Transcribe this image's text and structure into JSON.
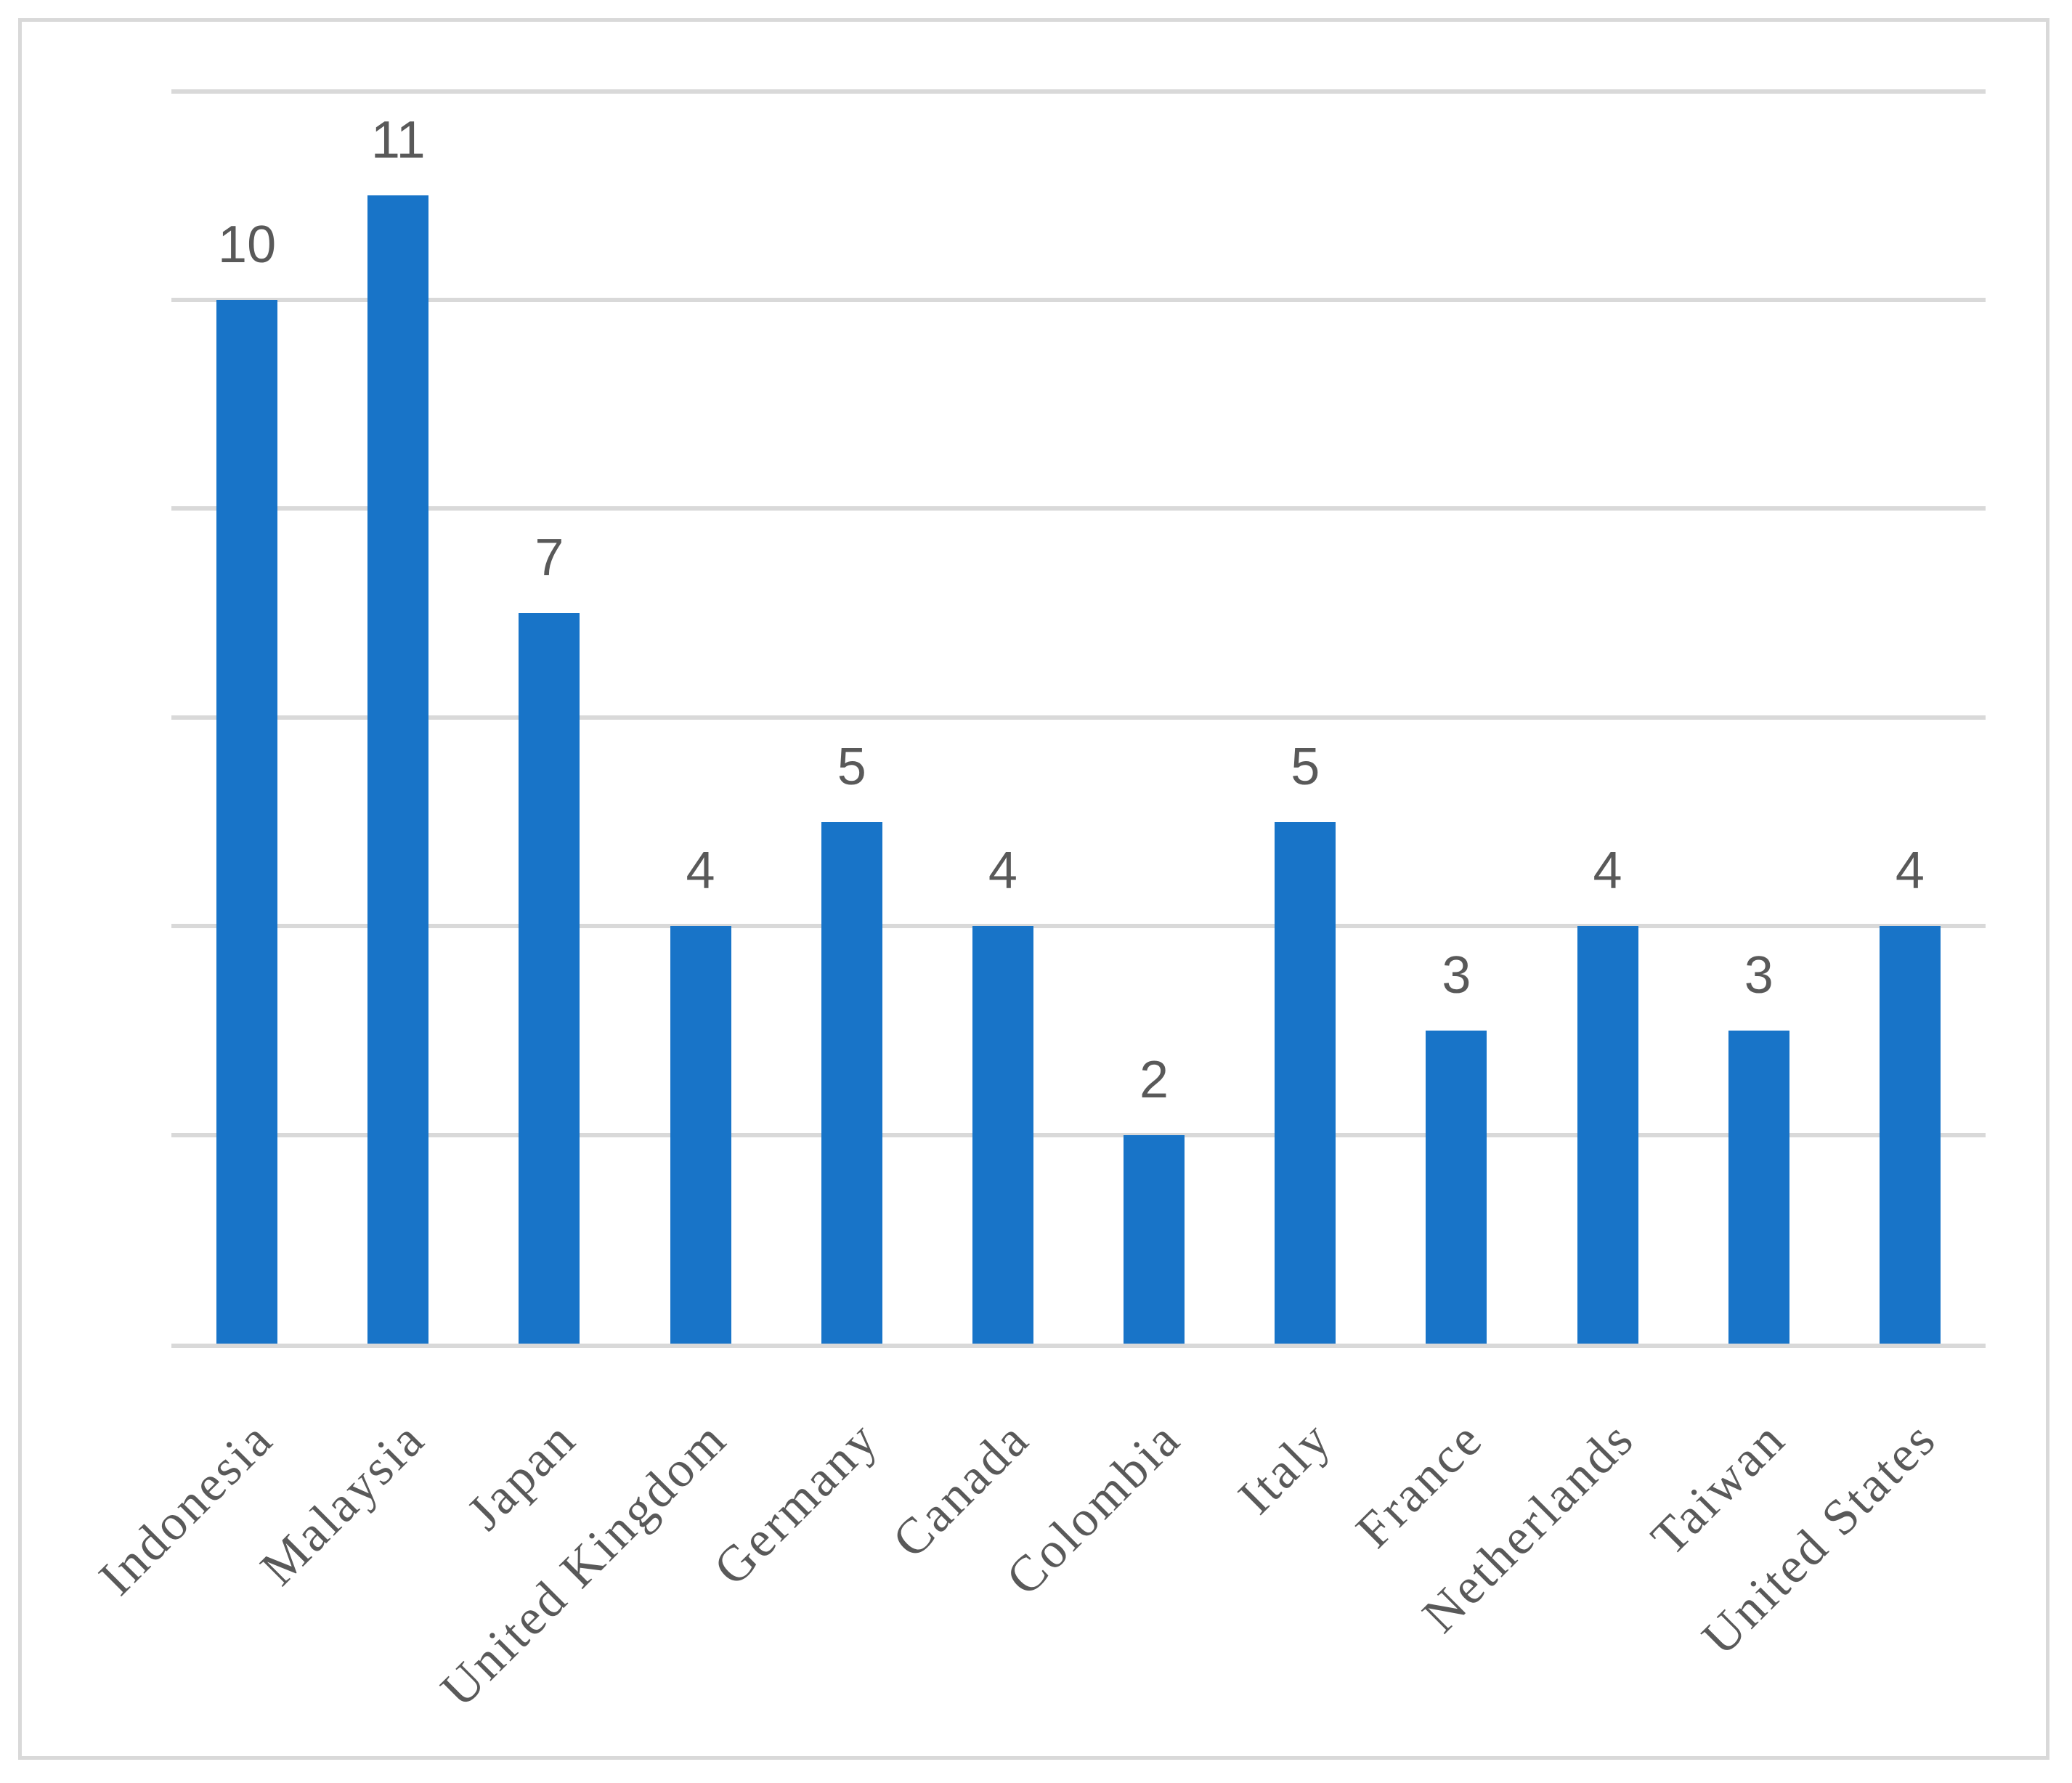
{
  "figure": {
    "background_color": "#ffffff",
    "border_color": "#d9d9d9",
    "title": ""
  },
  "chart_data": {
    "type": "bar",
    "categories": [
      "Indonesia",
      "Malaysia",
      "Japan",
      "United Kingdom",
      "Germany",
      "Canada",
      "Colombia",
      "Italy",
      "France",
      "Netherlands",
      "Taiwan",
      "United States"
    ],
    "values": [
      10,
      11,
      7,
      4,
      5,
      4,
      2,
      5,
      3,
      4,
      3,
      4
    ],
    "data_labels": [
      "10",
      "11",
      "7",
      "4",
      "5",
      "4",
      "2",
      "5",
      "3",
      "4",
      "3",
      "4"
    ],
    "title": "",
    "xlabel": "",
    "ylabel": "",
    "ylim": [
      0,
      12
    ],
    "gridline_step": 2,
    "grid_on": true,
    "y_tick_labels_visible": false,
    "legend_position": "none",
    "bar_color": "#1874c8",
    "gridline_color": "#d9d9d9",
    "axis_line_color": "#d9d9d9",
    "label_text_color": "#595959",
    "category_text_color": "#595959"
  }
}
